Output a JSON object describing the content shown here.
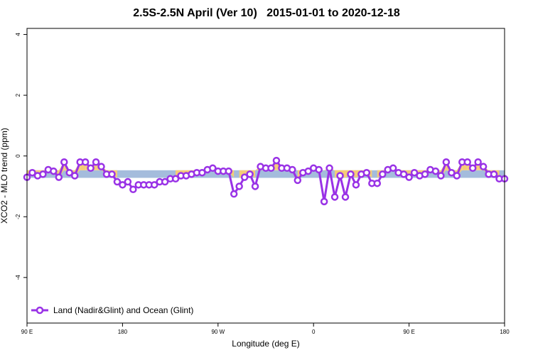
{
  "chart_data": {
    "type": "line",
    "title": "2.5S-2.5N April (Ver 10)   2015-01-01 to 2020-12-18",
    "xlabel": "Longitude (deg E)",
    "ylabel": "XCO2 - MLO trend (ppm)",
    "xlim": [
      90,
      450
    ],
    "ylim": [
      -5.5,
      4.2
    ],
    "x_ticks": [
      90,
      162,
      234,
      306,
      378,
      450
    ],
    "x_tick_labels": [
      "90 E",
      "180",
      "90 W",
      "0",
      "90 E",
      "180"
    ],
    "y_ticks": [
      -4,
      -2,
      0,
      2,
      4
    ],
    "y_tick_labels": [
      "-4",
      "-2",
      "0",
      "2",
      "4"
    ],
    "grid": false,
    "legend": {
      "position": "bottom-left",
      "entries": [
        "Land (Nadir&Glint) and Ocean (Glint)"
      ]
    },
    "band": {
      "lower": -0.72,
      "upper": -0.47,
      "color": "#a4bcdc",
      "above_color": "#f5cc78",
      "below_color": "#e8a860"
    },
    "colors": {
      "series": "#9932e6",
      "axis": "#000000"
    },
    "series": [
      {
        "name": "Land (Nadir&Glint) and Ocean (Glint)",
        "x": [
          90,
          94,
          98,
          102,
          106,
          110,
          114,
          118,
          122,
          126,
          130,
          134,
          138,
          142,
          146,
          150,
          154,
          158,
          162,
          166,
          170,
          174,
          178,
          182,
          186,
          190,
          194,
          198,
          202,
          206,
          210,
          214,
          218,
          222,
          226,
          230,
          234,
          238,
          242,
          246,
          250,
          254,
          258,
          262,
          266,
          270,
          274,
          278,
          282,
          286,
          290,
          294,
          298,
          302,
          306,
          310,
          314,
          318,
          322,
          326,
          330,
          334,
          338,
          342,
          346,
          350,
          354,
          358,
          362,
          366,
          370,
          374,
          378,
          382,
          386,
          390,
          394,
          398,
          402,
          406,
          410,
          414,
          418,
          422,
          426,
          430,
          434,
          438,
          442,
          446,
          450
        ],
        "y": [
          -0.7,
          -0.55,
          -0.65,
          -0.6,
          -0.45,
          -0.5,
          -0.7,
          -0.2,
          -0.55,
          -0.65,
          -0.2,
          -0.2,
          -0.4,
          -0.2,
          -0.35,
          -0.6,
          -0.6,
          -0.85,
          -0.95,
          -0.85,
          -1.1,
          -0.95,
          -0.95,
          -0.95,
          -0.95,
          -0.85,
          -0.85,
          -0.75,
          -0.75,
          -0.65,
          -0.65,
          -0.6,
          -0.55,
          -0.55,
          -0.45,
          -0.4,
          -0.5,
          -0.5,
          -0.5,
          -1.25,
          -1.0,
          -0.7,
          -0.6,
          -1.0,
          -0.35,
          -0.4,
          -0.4,
          -0.15,
          -0.4,
          -0.4,
          -0.45,
          -0.8,
          -0.55,
          -0.5,
          -0.4,
          -0.45,
          -1.5,
          -0.4,
          -1.35,
          -0.65,
          -1.35,
          -0.6,
          -0.95,
          -0.6,
          -0.55,
          -0.9,
          -0.9,
          -0.6,
          -0.45,
          -0.4,
          -0.55,
          -0.6,
          -0.7,
          -0.55,
          -0.65,
          -0.6,
          -0.45,
          -0.5,
          -0.65,
          -0.2,
          -0.55,
          -0.65,
          -0.2,
          -0.2,
          -0.4,
          -0.2,
          -0.35,
          -0.6,
          -0.6,
          -0.75,
          -0.75
        ]
      }
    ]
  }
}
